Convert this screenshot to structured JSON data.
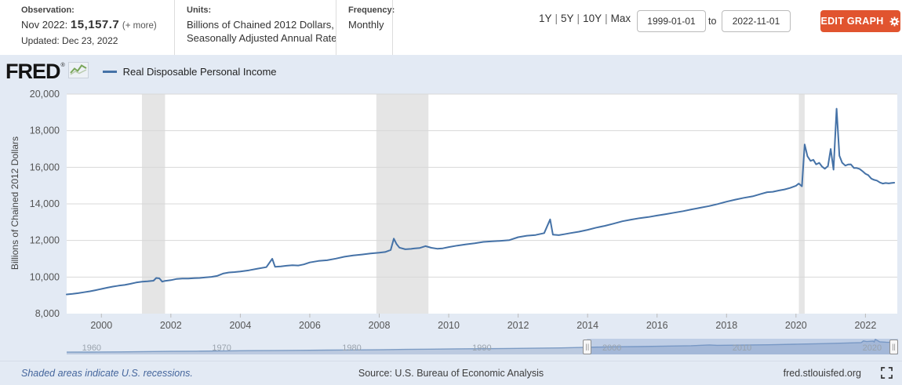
{
  "header": {
    "observation_label": "Observation:",
    "observation_date": "Nov 2022:",
    "observation_value": "15,157.7",
    "observation_more": "(+ more)",
    "updated": "Updated: Dec 23, 2022",
    "units_label": "Units:",
    "units_line1": "Billions of Chained 2012 Dollars,",
    "units_line2": "Seasonally Adjusted Annual Rate",
    "frequency_label": "Frequency:",
    "frequency_value": "Monthly",
    "range_links": [
      "1Y",
      "5Y",
      "10Y",
      "Max"
    ],
    "date_from": "1999-01-01",
    "date_to_word": "to",
    "date_to": "2022-11-01",
    "edit_graph_label": "EDIT GRAPH",
    "accent_color": "#e1542f"
  },
  "branding": {
    "logo": "FRED",
    "registered_mark": "®",
    "legend_label": "Real Disposable Personal Income",
    "line_color": "#4572a7"
  },
  "chart_data": {
    "type": "line",
    "title": "Real Disposable Personal Income",
    "ylabel": "Billions of Chained 2012 Dollars",
    "xlabel": "",
    "grid": true,
    "legend_position": "top-left",
    "ylim": [
      8000,
      20000
    ],
    "yticks": [
      8000,
      10000,
      12000,
      14000,
      16000,
      18000,
      20000
    ],
    "ytick_labels": [
      "8,000",
      "10,000",
      "12,000",
      "14,000",
      "16,000",
      "18,000",
      "20,000"
    ],
    "xlim": [
      1999.0,
      2022.917
    ],
    "xticks": [
      2000,
      2002,
      2004,
      2006,
      2008,
      2010,
      2012,
      2014,
      2016,
      2018,
      2020,
      2022
    ],
    "recession_bands": [
      [
        2001.167,
        2001.833
      ],
      [
        2007.917,
        2009.417
      ],
      [
        2020.083,
        2020.25
      ]
    ],
    "series": [
      {
        "name": "Real Disposable Personal Income",
        "color": "#4572a7",
        "points": [
          [
            1999.0,
            9050
          ],
          [
            1999.17,
            9080
          ],
          [
            1999.33,
            9120
          ],
          [
            1999.5,
            9170
          ],
          [
            1999.67,
            9220
          ],
          [
            1999.83,
            9280
          ],
          [
            2000.0,
            9350
          ],
          [
            2000.17,
            9420
          ],
          [
            2000.33,
            9480
          ],
          [
            2000.5,
            9530
          ],
          [
            2000.67,
            9570
          ],
          [
            2000.83,
            9630
          ],
          [
            2001.0,
            9700
          ],
          [
            2001.17,
            9750
          ],
          [
            2001.33,
            9770
          ],
          [
            2001.5,
            9800
          ],
          [
            2001.58,
            9950
          ],
          [
            2001.67,
            9930
          ],
          [
            2001.75,
            9750
          ],
          [
            2001.83,
            9790
          ],
          [
            2002.0,
            9830
          ],
          [
            2002.17,
            9900
          ],
          [
            2002.33,
            9920
          ],
          [
            2002.5,
            9920
          ],
          [
            2002.67,
            9940
          ],
          [
            2002.83,
            9950
          ],
          [
            2003.0,
            9980
          ],
          [
            2003.17,
            10010
          ],
          [
            2003.33,
            10060
          ],
          [
            2003.5,
            10190
          ],
          [
            2003.67,
            10250
          ],
          [
            2003.83,
            10270
          ],
          [
            2004.0,
            10300
          ],
          [
            2004.25,
            10370
          ],
          [
            2004.5,
            10460
          ],
          [
            2004.75,
            10540
          ],
          [
            2004.92,
            11000
          ],
          [
            2005.0,
            10560
          ],
          [
            2005.17,
            10580
          ],
          [
            2005.33,
            10620
          ],
          [
            2005.5,
            10650
          ],
          [
            2005.67,
            10630
          ],
          [
            2005.83,
            10690
          ],
          [
            2006.0,
            10800
          ],
          [
            2006.25,
            10880
          ],
          [
            2006.5,
            10920
          ],
          [
            2006.75,
            11010
          ],
          [
            2007.0,
            11110
          ],
          [
            2007.25,
            11180
          ],
          [
            2007.5,
            11230
          ],
          [
            2007.75,
            11290
          ],
          [
            2008.0,
            11330
          ],
          [
            2008.17,
            11370
          ],
          [
            2008.33,
            11480
          ],
          [
            2008.42,
            12100
          ],
          [
            2008.5,
            11800
          ],
          [
            2008.58,
            11610
          ],
          [
            2008.75,
            11520
          ],
          [
            2008.92,
            11540
          ],
          [
            2009.0,
            11560
          ],
          [
            2009.17,
            11590
          ],
          [
            2009.33,
            11690
          ],
          [
            2009.5,
            11600
          ],
          [
            2009.67,
            11550
          ],
          [
            2009.83,
            11570
          ],
          [
            2010.0,
            11640
          ],
          [
            2010.25,
            11720
          ],
          [
            2010.5,
            11790
          ],
          [
            2010.75,
            11850
          ],
          [
            2011.0,
            11920
          ],
          [
            2011.25,
            11950
          ],
          [
            2011.5,
            11980
          ],
          [
            2011.75,
            12020
          ],
          [
            2012.0,
            12180
          ],
          [
            2012.25,
            12260
          ],
          [
            2012.5,
            12300
          ],
          [
            2012.75,
            12400
          ],
          [
            2012.92,
            13150
          ],
          [
            2013.0,
            12320
          ],
          [
            2013.17,
            12290
          ],
          [
            2013.33,
            12340
          ],
          [
            2013.5,
            12400
          ],
          [
            2013.75,
            12480
          ],
          [
            2014.0,
            12580
          ],
          [
            2014.25,
            12700
          ],
          [
            2014.5,
            12800
          ],
          [
            2014.75,
            12920
          ],
          [
            2015.0,
            13050
          ],
          [
            2015.25,
            13140
          ],
          [
            2015.5,
            13220
          ],
          [
            2015.75,
            13280
          ],
          [
            2016.0,
            13360
          ],
          [
            2016.25,
            13440
          ],
          [
            2016.5,
            13520
          ],
          [
            2016.75,
            13600
          ],
          [
            2017.0,
            13700
          ],
          [
            2017.25,
            13790
          ],
          [
            2017.5,
            13880
          ],
          [
            2017.75,
            13990
          ],
          [
            2018.0,
            14120
          ],
          [
            2018.25,
            14230
          ],
          [
            2018.5,
            14330
          ],
          [
            2018.75,
            14410
          ],
          [
            2019.0,
            14550
          ],
          [
            2019.17,
            14640
          ],
          [
            2019.33,
            14660
          ],
          [
            2019.5,
            14730
          ],
          [
            2019.67,
            14790
          ],
          [
            2019.83,
            14870
          ],
          [
            2020.0,
            14990
          ],
          [
            2020.08,
            15110
          ],
          [
            2020.17,
            14960
          ],
          [
            2020.25,
            17250
          ],
          [
            2020.33,
            16600
          ],
          [
            2020.42,
            16350
          ],
          [
            2020.5,
            16410
          ],
          [
            2020.58,
            16160
          ],
          [
            2020.67,
            16240
          ],
          [
            2020.75,
            16040
          ],
          [
            2020.83,
            15920
          ],
          [
            2020.92,
            16060
          ],
          [
            2021.0,
            17000
          ],
          [
            2021.08,
            15870
          ],
          [
            2021.17,
            19205
          ],
          [
            2021.25,
            16630
          ],
          [
            2021.33,
            16250
          ],
          [
            2021.42,
            16090
          ],
          [
            2021.5,
            16150
          ],
          [
            2021.58,
            16160
          ],
          [
            2021.67,
            15960
          ],
          [
            2021.75,
            15960
          ],
          [
            2021.83,
            15910
          ],
          [
            2021.92,
            15780
          ],
          [
            2022.0,
            15645
          ],
          [
            2022.08,
            15574
          ],
          [
            2022.17,
            15379
          ],
          [
            2022.25,
            15312
          ],
          [
            2022.33,
            15273
          ],
          [
            2022.42,
            15166
          ],
          [
            2022.5,
            15112
          ],
          [
            2022.58,
            15140
          ],
          [
            2022.67,
            15119
          ],
          [
            2022.75,
            15141
          ],
          [
            2022.83,
            15158
          ]
        ]
      }
    ]
  },
  "minimap": {
    "xlim": [
      1959.0,
      2022.917
    ],
    "ylim": [
      0,
      20000
    ],
    "decade_labels": [
      "1960",
      "1970",
      "1980",
      "1990",
      "2000",
      "2010",
      "2020"
    ],
    "decade_years": [
      1960,
      1970,
      1980,
      1990,
      2000,
      2010,
      2020
    ],
    "selection": [
      1999.0,
      2022.917
    ],
    "points": [
      [
        1959,
        2850
      ],
      [
        1961,
        3000
      ],
      [
        1963,
        3210
      ],
      [
        1965,
        3560
      ],
      [
        1967,
        3870
      ],
      [
        1969,
        4110
      ],
      [
        1971,
        4450
      ],
      [
        1973,
        4790
      ],
      [
        1975,
        4950
      ],
      [
        1977,
        5220
      ],
      [
        1979,
        5540
      ],
      [
        1981,
        5730
      ],
      [
        1983,
        5930
      ],
      [
        1985,
        6390
      ],
      [
        1987,
        6750
      ],
      [
        1989,
        7110
      ],
      [
        1991,
        7330
      ],
      [
        1993,
        7630
      ],
      [
        1995,
        7900
      ],
      [
        1997,
        8320
      ],
      [
        1999,
        9050
      ],
      [
        2001,
        9700
      ],
      [
        2003,
        9980
      ],
      [
        2005,
        10560
      ],
      [
        2007,
        11110
      ],
      [
        2008.42,
        12100
      ],
      [
        2009,
        11560
      ],
      [
        2011,
        11920
      ],
      [
        2013,
        12320
      ],
      [
        2015,
        13050
      ],
      [
        2017,
        13700
      ],
      [
        2019,
        14550
      ],
      [
        2020.08,
        15110
      ],
      [
        2020.25,
        17250
      ],
      [
        2020.5,
        16400
      ],
      [
        2021.0,
        17000
      ],
      [
        2021.08,
        15870
      ],
      [
        2021.17,
        19205
      ],
      [
        2021.5,
        16150
      ],
      [
        2022.0,
        15645
      ],
      [
        2022.83,
        15158
      ]
    ]
  },
  "footer": {
    "recession_note": "Shaded areas indicate U.S. recessions.",
    "source": "Source: U.S. Bureau of Economic Analysis",
    "site": "fred.stlouisfed.org"
  },
  "colors": {
    "page_bg": "#e3eaf4",
    "plot_bg": "#ffffff",
    "gridline": "#d8d8d8",
    "recession_band": "#e5e5e5",
    "tick_text": "#555555",
    "minimap_fill": "#b7c6de",
    "minimap_line": "#7d9cc4",
    "minimap_selection": "rgba(110,143,200,0.30)"
  }
}
